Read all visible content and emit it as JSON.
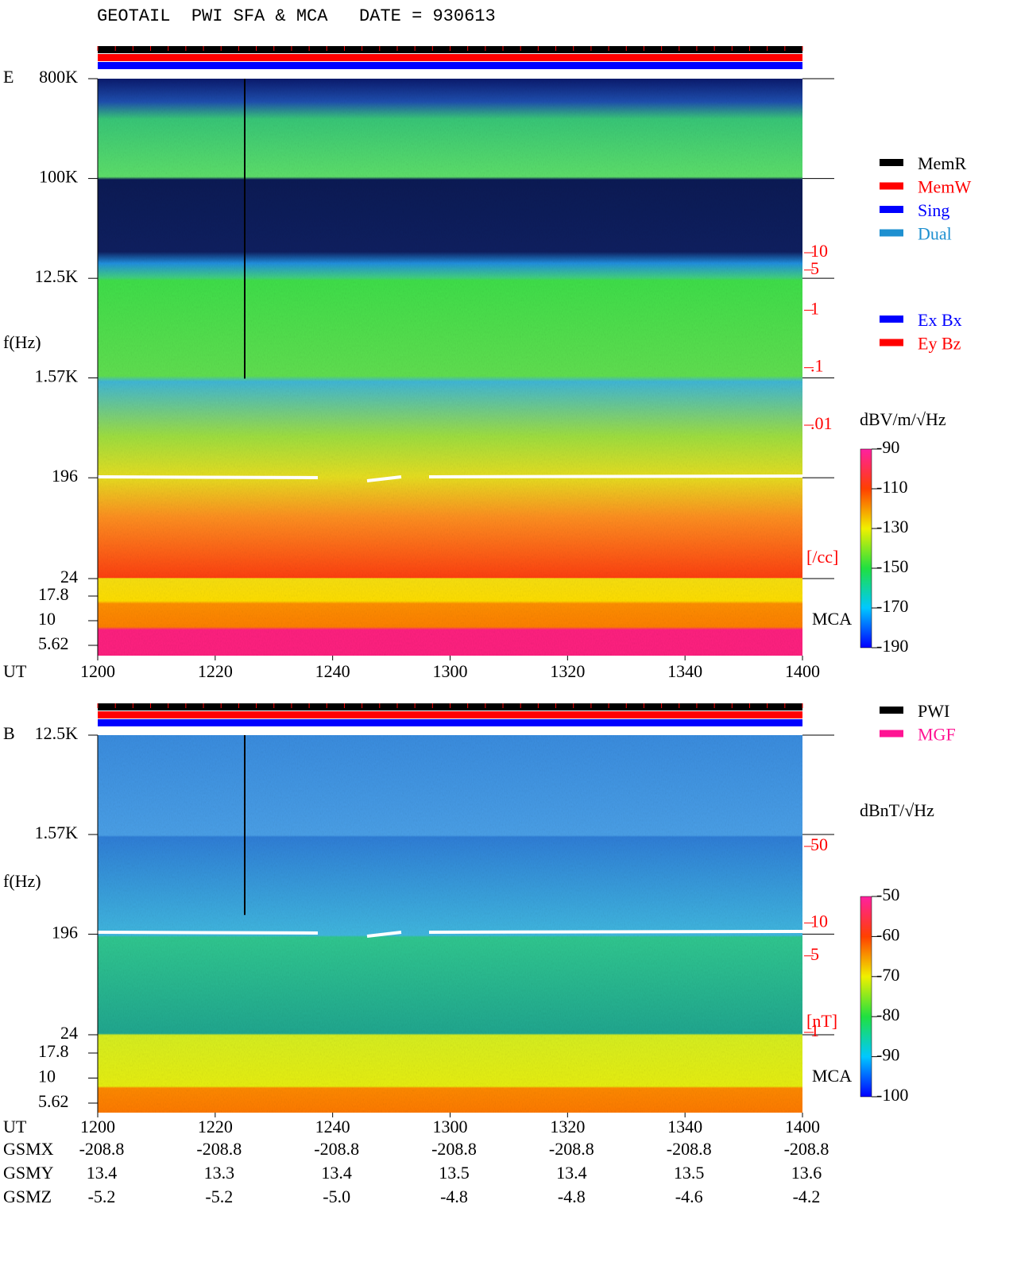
{
  "title": "GEOTAIL  PWI SFA & MCA   DATE = 930613",
  "chart_data": [
    {
      "type": "spectrogram",
      "panel_label": "E",
      "y_label": "f(Hz)",
      "x_label": "UT",
      "mca_label": "MCA",
      "yscale": "log",
      "ylim": [
        24,
        800000
      ],
      "yticks": [
        {
          "value": 800000,
          "label": "800K"
        },
        {
          "value": 100000,
          "label": "100K"
        },
        {
          "value": 12500,
          "label": "12.5K"
        },
        {
          "value": 1570,
          "label": "1.57K"
        },
        196,
        24
      ],
      "mca_ylim": [
        5.62,
        17.8
      ],
      "mca_yticks": [
        17.8,
        10,
        5.62
      ],
      "xticks": [
        "1200",
        "1220",
        "1240",
        "1300",
        "1320",
        "1340",
        "1400"
      ],
      "density_label": "[/cc]",
      "density_lim": [
        0.01,
        10
      ],
      "density_ticks": [
        10,
        5,
        1,
        {
          "value": 0.1,
          "label": ".1"
        },
        {
          "value": 0.01,
          "label": ".01"
        }
      ],
      "colorbar": {
        "label": "dBV/m/√Hz",
        "lim": [
          -190,
          -90
        ],
        "ticks": [
          -90,
          -110,
          -130,
          -150,
          -170,
          -190
        ]
      },
      "legend": [
        {
          "name": "MemR",
          "color": "#000000"
        },
        {
          "name": "MemW",
          "color": "#ff0000"
        },
        {
          "name": "Sing",
          "color": "#0000ff"
        },
        {
          "name": "Dual",
          "color": "#1e90d0"
        }
      ],
      "legend2": [
        {
          "name": "Ex Bx",
          "color": "#0000ff"
        },
        {
          "name": "Ey Bz",
          "color": "#ff0000"
        }
      ]
    },
    {
      "type": "spectrogram",
      "panel_label": "B",
      "y_label": "f(Hz)",
      "x_label": "UT",
      "mca_label": "MCA",
      "yscale": "log",
      "ylim": [
        24,
        12500
      ],
      "yticks": [
        {
          "value": 12500,
          "label": "12.5K"
        },
        {
          "value": 1570,
          "label": "1.57K"
        },
        196,
        24
      ],
      "mca_ylim": [
        5.62,
        17.8
      ],
      "mca_yticks": [
        17.8,
        10,
        5.62
      ],
      "xticks": [
        "1200",
        "1220",
        "1240",
        "1300",
        "1320",
        "1340",
        "1400"
      ],
      "density_label": "[nT]",
      "density_lim": [
        1,
        50
      ],
      "density_ticks": [
        50,
        10,
        5,
        1
      ],
      "colorbar": {
        "label": "dBnT/√Hz",
        "lim": [
          -100,
          -50
        ],
        "ticks": [
          -50,
          -60,
          -70,
          -80,
          -90,
          -100
        ]
      },
      "legend": [
        {
          "name": "PWI",
          "color": "#000000"
        },
        {
          "name": "MGF",
          "color": "#ff1493"
        }
      ],
      "legend2": []
    }
  ],
  "ephemeris": [
    {
      "name": "GSMX",
      "values": [
        "-208.8",
        "-208.8",
        "-208.8",
        "-208.8",
        "-208.8",
        "-208.8",
        "-208.8"
      ]
    },
    {
      "name": "GSMY",
      "values": [
        "13.4",
        "13.3",
        "13.4",
        "13.5",
        "13.4",
        "13.5",
        "13.6"
      ]
    },
    {
      "name": "GSMZ",
      "values": [
        "-5.2",
        "-5.2",
        "-5.0",
        "-4.8",
        "-4.8",
        "-4.6",
        "-4.2"
      ]
    }
  ]
}
